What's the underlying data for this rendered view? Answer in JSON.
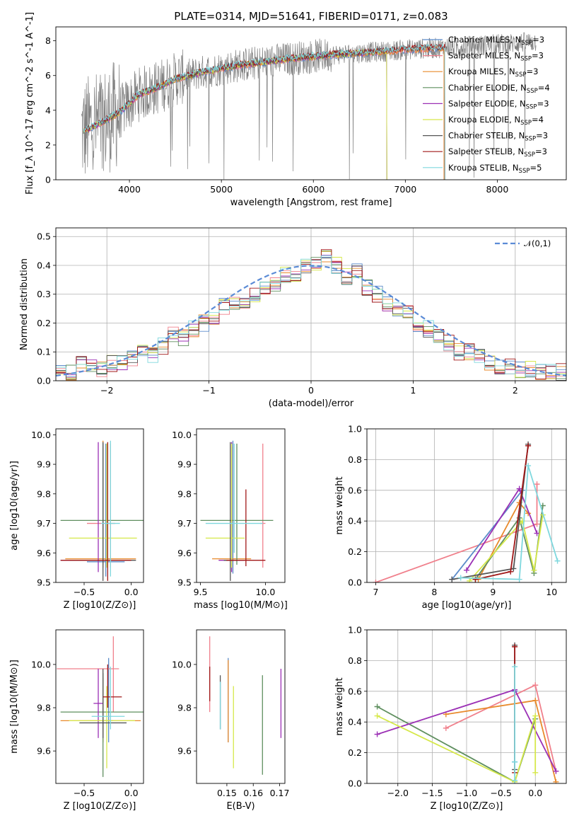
{
  "title": "PLATE=0314, MJD=51641, FIBERID=0171, z=0.083",
  "models": [
    {
      "key": "chabrier_miles",
      "name": "Chabrier MILES",
      "nssp": "3",
      "color": "#5b8bc9"
    },
    {
      "key": "salpeter_miles",
      "name": "Salpeter MILES",
      "nssp": "3",
      "color": "#f0808c"
    },
    {
      "key": "kroupa_miles",
      "name": "Kroupa MILES",
      "nssp": "3",
      "color": "#e88a2c"
    },
    {
      "key": "chabrier_elodie",
      "name": "Chabrier ELODIE",
      "nssp": "4",
      "color": "#5f8f5f"
    },
    {
      "key": "salpeter_elodie",
      "name": "Salpeter ELODIE",
      "nssp": "3",
      "color": "#9b30b5"
    },
    {
      "key": "kroupa_elodie",
      "name": "Kroupa ELODIE",
      "nssp": "4",
      "color": "#d6e84a"
    },
    {
      "key": "chabrier_stelib",
      "name": "Chabrier STELIB",
      "nssp": "3",
      "color": "#555555"
    },
    {
      "key": "salpeter_stelib",
      "name": "Salpeter STELIB",
      "nssp": "3",
      "color": "#a01818"
    },
    {
      "key": "kroupa_stelib",
      "name": "Kroupa STELIB",
      "nssp": "5",
      "color": "#7fd8de"
    }
  ],
  "chart_data": [
    {
      "id": "spectrum",
      "type": "line",
      "xlabel": "wavelength [Angstrom, rest frame]",
      "ylabel": "Flux [f_λ 10^-17 erg cm^-2 s^-1 A^-1]",
      "xlim": [
        3200,
        8750
      ],
      "ylim": [
        0,
        8.8
      ],
      "xticks": [
        4000,
        5000,
        6000,
        7000,
        8000
      ],
      "yticks": [
        0,
        2,
        4,
        6,
        8
      ],
      "grid": false,
      "legend": "top-right",
      "data_color": "#808080",
      "continuum": {
        "x": [
          3500,
          3700,
          3900,
          4000,
          4100,
          4300,
          4500,
          4800,
          5000,
          5200,
          5500,
          5800,
          6000,
          6200,
          6500,
          6800,
          7000,
          7200,
          7400,
          7700,
          8000,
          8300,
          8500
        ],
        "y": [
          2.8,
          3.3,
          3.9,
          4.4,
          4.9,
          5.3,
          5.8,
          6.2,
          6.4,
          6.6,
          6.8,
          7.0,
          7.1,
          7.2,
          7.3,
          7.4,
          7.5,
          7.55,
          7.6,
          7.7,
          7.8,
          7.9,
          8.0
        ]
      },
      "model_cutoffs": {
        "miles": 7420,
        "elodie": 6800,
        "stelib": 7430
      }
    },
    {
      "id": "residuals",
      "type": "histogram",
      "xlabel": "(data-model)/error",
      "ylabel": "Normed distribution",
      "xlim": [
        -2.5,
        2.5
      ],
      "ylim": [
        0,
        0.53
      ],
      "xticks": [
        -2,
        -1,
        0,
        1,
        2
      ],
      "yticks": [
        0.0,
        0.1,
        0.2,
        0.3,
        0.4,
        0.5
      ],
      "grid": true,
      "legend": "top-right",
      "reference": {
        "name": "𝒩(0,1)",
        "mu": 0,
        "sigma": 1,
        "color": "#5b8bd6"
      },
      "bin_edges_start": -2.5,
      "bin_width": 0.1,
      "base_counts": [
        0.03,
        0.03,
        0.06,
        0.05,
        0.04,
        0.06,
        0.06,
        0.08,
        0.1,
        0.09,
        0.12,
        0.16,
        0.15,
        0.18,
        0.2,
        0.22,
        0.26,
        0.27,
        0.26,
        0.3,
        0.32,
        0.34,
        0.37,
        0.35,
        0.4,
        0.41,
        0.43,
        0.4,
        0.36,
        0.38,
        0.32,
        0.3,
        0.27,
        0.25,
        0.24,
        0.2,
        0.18,
        0.15,
        0.13,
        0.1,
        0.1,
        0.08,
        0.06,
        0.05,
        0.05,
        0.04,
        0.04,
        0.03,
        0.03,
        0.03
      ]
    },
    {
      "id": "age-vs-Z",
      "type": "errorbar",
      "xlabel": "Z [log10(Z/Z⊙)]",
      "ylabel": "age [log10(age/yr)]",
      "xlim": [
        -0.8,
        0.13
      ],
      "ylim": [
        9.5,
        10.02
      ],
      "xticks": [
        -0.5,
        0.0
      ],
      "yticks": [
        9.5,
        9.6,
        9.7,
        9.8,
        9.9,
        10.0
      ],
      "points": [
        {
          "m": "chabrier_miles",
          "x": -0.27,
          "xerr": [
            0.2,
            0.2
          ],
          "y": 9.57,
          "yerr": [
            0.05,
            0.4
          ]
        },
        {
          "m": "salpeter_miles",
          "x": -0.22,
          "xerr": [
            0.25,
            0.05
          ],
          "y": 9.7,
          "yerr": [
            0.15,
            0.27
          ]
        },
        {
          "m": "kroupa_miles",
          "x": -0.3,
          "xerr": [
            0.4,
            0.35
          ],
          "y": 9.58,
          "yerr": [
            0.03,
            0.4
          ]
        },
        {
          "m": "chabrier_elodie",
          "x": -0.3,
          "xerr": [
            0.45,
            0.48
          ],
          "y": 9.71,
          "yerr": [
            0.15,
            0.26
          ]
        },
        {
          "m": "salpeter_elodie",
          "x": -0.35,
          "xerr": [
            0.4,
            0.05
          ],
          "y": 9.575,
          "yerr": [
            0.04,
            0.4
          ]
        },
        {
          "m": "kroupa_elodie",
          "x": -0.26,
          "xerr": [
            0.4,
            0.32
          ],
          "y": 9.65,
          "yerr": [
            0.1,
            0.32
          ]
        },
        {
          "m": "chabrier_stelib",
          "x": -0.3,
          "xerr": [
            0.35,
            0.35
          ],
          "y": 9.575,
          "yerr": [
            0.07,
            0.4
          ]
        },
        {
          "m": "salpeter_stelib",
          "x": -0.25,
          "xerr": [
            0.5,
            0.25
          ],
          "y": 9.575,
          "yerr": [
            0.07,
            0.4
          ]
        },
        {
          "m": "kroupa_stelib",
          "x": -0.22,
          "xerr": [
            0.1,
            0.1
          ],
          "y": 9.7,
          "yerr": [
            0.18,
            0.28
          ]
        }
      ]
    },
    {
      "id": "age-vs-mass",
      "type": "errorbar",
      "xlabel": "mass [log10(M/M⊙)]",
      "ylabel": "",
      "xlim": [
        9.47,
        10.15
      ],
      "ylim": [
        9.5,
        10.02
      ],
      "xticks": [
        9.5,
        10.0
      ],
      "yticks": [
        9.5,
        9.6,
        9.7,
        9.8,
        9.9,
        10.0
      ],
      "points": [
        {
          "m": "chabrier_miles",
          "x": 9.75,
          "xerr": [
            0.02,
            0.02
          ],
          "y": 9.58,
          "yerr": [
            0.05,
            0.4
          ]
        },
        {
          "m": "salpeter_miles",
          "x": 9.98,
          "xerr": [
            0.02,
            0.02
          ],
          "y": 9.7,
          "yerr": [
            0.15,
            0.27
          ]
        },
        {
          "m": "kroupa_miles",
          "x": 9.74,
          "xerr": [
            0.15,
            0.15
          ],
          "y": 9.58,
          "yerr": [
            0.03,
            0.38
          ]
        },
        {
          "m": "chabrier_elodie",
          "x": 9.78,
          "xerr": [
            0.28,
            0.28
          ],
          "y": 9.71,
          "yerr": [
            0.15,
            0.26
          ]
        },
        {
          "m": "salpeter_elodie",
          "x": 9.74,
          "xerr": [
            0.1,
            0.1
          ],
          "y": 9.575,
          "yerr": [
            0.04,
            0.4
          ]
        },
        {
          "m": "kroupa_elodie",
          "x": 9.74,
          "xerr": [
            0.2,
            0.1
          ],
          "y": 9.65,
          "yerr": [
            0.1,
            0.32
          ]
        },
        {
          "m": "chabrier_stelib",
          "x": 9.73,
          "xerr": [
            0.05,
            0.05
          ],
          "y": 9.575,
          "yerr": [
            0.07,
            0.4
          ]
        },
        {
          "m": "salpeter_stelib",
          "x": 9.85,
          "xerr": [
            0.15,
            0.15
          ],
          "y": 9.575,
          "yerr": [
            0.02,
            0.24
          ]
        },
        {
          "m": "kroupa_stelib",
          "x": 9.76,
          "xerr": [
            0.22,
            0.22
          ],
          "y": 9.7,
          "yerr": [
            0.1,
            0.27
          ]
        }
      ]
    },
    {
      "id": "mass-weight-vs-age",
      "type": "line",
      "xlabel": "age [log10(age/yr)]",
      "ylabel": "mass weight",
      "xlim": [
        6.85,
        10.25
      ],
      "ylim": [
        0,
        1.0
      ],
      "xticks": [
        7,
        8,
        9,
        10
      ],
      "yticks": [
        0.0,
        0.2,
        0.4,
        0.6,
        0.8,
        1.0
      ],
      "grid": true,
      "series": [
        {
          "m": "salpeter_miles",
          "x": [
            7.0,
            9.75,
            9.75
          ],
          "y": [
            0.0,
            0.38,
            0.64
          ]
        },
        {
          "m": "chabrier_miles",
          "x": [
            8.3,
            9.5
          ],
          "y": [
            0.02,
            0.6
          ]
        },
        {
          "m": "kroupa_miles",
          "x": [
            8.75,
            9.45,
            9.6
          ],
          "y": [
            0.02,
            0.52,
            0.45
          ]
        },
        {
          "m": "chabrier_elodie",
          "x": [
            8.7,
            9.45,
            9.7,
            9.85
          ],
          "y": [
            0.02,
            0.42,
            0.06,
            0.5
          ]
        },
        {
          "m": "salpeter_elodie",
          "x": [
            8.55,
            9.45,
            9.75
          ],
          "y": [
            0.08,
            0.61,
            0.32
          ]
        },
        {
          "m": "kroupa_elodie",
          "x": [
            8.6,
            9.5,
            9.7,
            9.85
          ],
          "y": [
            0.01,
            0.4,
            0.08,
            0.44
          ]
        },
        {
          "m": "chabrier_stelib",
          "x": [
            8.3,
            9.35,
            9.6
          ],
          "y": [
            0.02,
            0.09,
            0.9
          ]
        },
        {
          "m": "salpeter_stelib",
          "x": [
            8.7,
            9.3,
            9.6
          ],
          "y": [
            0.02,
            0.07,
            0.89
          ]
        },
        {
          "m": "kroupa_stelib",
          "x": [
            8.45,
            9.45,
            9.6,
            10.1
          ],
          "y": [
            0.03,
            0.02,
            0.76,
            0.14
          ]
        }
      ]
    },
    {
      "id": "mass-vs-Z",
      "type": "errorbar",
      "xlabel": "Z [log10(Z/Z⊙)]",
      "ylabel": "mass [log10(M/M⊙)]",
      "xlim": [
        -0.8,
        0.13
      ],
      "ylim": [
        9.45,
        10.16
      ],
      "xticks": [
        -0.5,
        0.0
      ],
      "yticks": [
        9.6,
        9.8,
        10.0
      ],
      "points": [
        {
          "m": "chabrier_miles",
          "x": -0.24,
          "xerr": [
            0.05,
            0.05
          ],
          "y": 9.74,
          "yerr": [
            0.1,
            0.29
          ]
        },
        {
          "m": "salpeter_miles",
          "x": -0.19,
          "xerr": [
            0.6,
            0.06
          ],
          "y": 9.98,
          "yerr": [
            0.2,
            0.15
          ]
        },
        {
          "m": "kroupa_miles",
          "x": -0.3,
          "xerr": [
            0.45,
            0.4
          ],
          "y": 9.74,
          "yerr": [
            0.1,
            0.2
          ]
        },
        {
          "m": "chabrier_elodie",
          "x": -0.3,
          "xerr": [
            0.45,
            0.48
          ],
          "y": 9.78,
          "yerr": [
            0.3,
            0.18
          ]
        },
        {
          "m": "salpeter_elodie",
          "x": -0.35,
          "xerr": [
            0.05,
            0.05
          ],
          "y": 9.82,
          "yerr": [
            0.16,
            0.16
          ]
        },
        {
          "m": "kroupa_elodie",
          "x": -0.26,
          "xerr": [
            0.4,
            0.3
          ],
          "y": 9.74,
          "yerr": [
            0.22,
            0.16
          ]
        },
        {
          "m": "chabrier_stelib",
          "x": -0.3,
          "xerr": [
            0.25,
            0.25
          ],
          "y": 9.73,
          "yerr": [
            0.07,
            0.25
          ]
        },
        {
          "m": "salpeter_stelib",
          "x": -0.25,
          "xerr": [
            0.05,
            0.15
          ],
          "y": 9.85,
          "yerr": [
            0.05,
            0.15
          ]
        },
        {
          "m": "kroupa_stelib",
          "x": -0.22,
          "xerr": [
            0.2,
            0.15
          ],
          "y": 9.76,
          "yerr": [
            0.06,
            0.23
          ]
        }
      ]
    },
    {
      "id": "mass-vs-ebv",
      "type": "errorbar",
      "xlabel": "E(B-V)",
      "ylabel": "",
      "xlim": [
        0.1385,
        0.172
      ],
      "ylim": [
        9.45,
        10.16
      ],
      "xticks": [
        0.15,
        0.16,
        0.17
      ],
      "yticks": [
        9.6,
        9.8,
        10.0
      ],
      "points": [
        {
          "m": "chabrier_miles",
          "x": 0.1505,
          "xerr": [
            0,
            0
          ],
          "y": 9.74,
          "yerr": [
            0.1,
            0.29
          ]
        },
        {
          "m": "salpeter_miles",
          "x": 0.1435,
          "xerr": [
            0,
            0
          ],
          "y": 9.98,
          "yerr": [
            0.2,
            0.15
          ]
        },
        {
          "m": "kroupa_miles",
          "x": 0.1505,
          "xerr": [
            0,
            0
          ],
          "y": 9.74,
          "yerr": [
            0.1,
            0.28
          ]
        },
        {
          "m": "chabrier_elodie",
          "x": 0.1635,
          "xerr": [
            0,
            0
          ],
          "y": 9.72,
          "yerr": [
            0.23,
            0.23
          ]
        },
        {
          "m": "salpeter_elodie",
          "x": 0.1705,
          "xerr": [
            0,
            0
          ],
          "y": 9.82,
          "yerr": [
            0.16,
            0.16
          ]
        },
        {
          "m": "kroupa_elodie",
          "x": 0.1525,
          "xerr": [
            0,
            0
          ],
          "y": 9.74,
          "yerr": [
            0.22,
            0.16
          ]
        },
        {
          "m": "chabrier_stelib",
          "x": 0.1475,
          "xerr": [
            0,
            0
          ],
          "y": 9.82,
          "yerr": [
            0.12,
            0.13
          ]
        },
        {
          "m": "salpeter_stelib",
          "x": 0.1435,
          "xerr": [
            0,
            0
          ],
          "y": 9.9,
          "yerr": [
            0.07,
            0.09
          ]
        },
        {
          "m": "kroupa_stelib",
          "x": 0.1475,
          "xerr": [
            0,
            0
          ],
          "y": 9.8,
          "yerr": [
            0.1,
            0.12
          ]
        }
      ]
    },
    {
      "id": "mass-weight-vs-Z",
      "type": "line",
      "xlabel": "Z [log10(Z/Z⊙)]",
      "ylabel": "mass weight",
      "xlim": [
        -2.45,
        0.45
      ],
      "ylim": [
        0,
        1.0
      ],
      "xticks": [
        -2.0,
        -1.5,
        -1.0,
        -0.5,
        0.0
      ],
      "yticks": [
        0.0,
        0.2,
        0.4,
        0.6,
        0.8,
        1.0
      ],
      "grid": true,
      "series": [
        {
          "m": "salpeter_miles",
          "x": [
            -1.3,
            0.0,
            0.3
          ],
          "y": [
            0.36,
            0.64,
            0.08
          ]
        },
        {
          "m": "kroupa_miles",
          "x": [
            -1.3,
            0.0,
            0.3
          ],
          "y": [
            0.45,
            0.54,
            0.01
          ]
        },
        {
          "m": "chabrier_miles",
          "x": [
            -0.3,
            -0.3
          ],
          "y": [
            0.14,
            0.6
          ]
        },
        {
          "m": "chabrier_elodie",
          "x": [
            -2.3,
            -0.3,
            0.0
          ],
          "y": [
            0.5,
            0.01,
            0.42
          ]
        },
        {
          "m": "salpeter_elodie",
          "x": [
            -2.3,
            -0.3,
            0.3
          ],
          "y": [
            0.32,
            0.61,
            0.08
          ]
        },
        {
          "m": "kroupa_elodie",
          "x": [
            -2.3,
            -0.3,
            0.0,
            0.0
          ],
          "y": [
            0.44,
            0.01,
            0.44,
            0.07
          ]
        },
        {
          "m": "chabrier_stelib",
          "x": [
            -0.3,
            -0.3
          ],
          "y": [
            0.09,
            0.9
          ]
        },
        {
          "m": "salpeter_stelib",
          "x": [
            -0.3,
            -0.3
          ],
          "y": [
            0.07,
            0.89
          ]
        },
        {
          "m": "kroupa_stelib",
          "x": [
            -0.3,
            -0.3,
            -0.3
          ],
          "y": [
            0.02,
            0.14,
            0.76
          ]
        }
      ]
    }
  ]
}
